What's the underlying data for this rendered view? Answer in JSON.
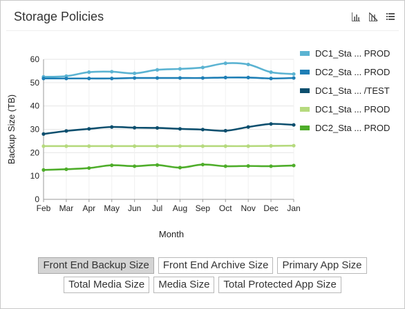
{
  "panel": {
    "title": "Storage Policies",
    "tools": [
      {
        "name": "bar-chart-icon"
      },
      {
        "name": "no-chart-icon"
      },
      {
        "name": "list-icon"
      }
    ]
  },
  "chart_data": {
    "type": "line",
    "xlabel": "Month",
    "ylabel": "Backup Size (TB)",
    "ylim": [
      0,
      60
    ],
    "yticks": [
      0,
      10,
      20,
      30,
      40,
      50,
      60
    ],
    "grid": true,
    "legend_position": "right",
    "categories": [
      "Feb",
      "Mar",
      "Apr",
      "May",
      "Jun",
      "Jul",
      "Aug",
      "Sep",
      "Oct",
      "Nov",
      "Dec",
      "Jan"
    ],
    "series": [
      {
        "name": "DC1_Sta ... PROD",
        "color": "#5bb3d2",
        "values": [
          52.5,
          52.8,
          54.5,
          54.7,
          54.0,
          55.5,
          55.9,
          56.5,
          58.3,
          57.8,
          54.5,
          53.7
        ]
      },
      {
        "name": "DC2_Sta ... PROD",
        "color": "#1f7fb6",
        "values": [
          51.8,
          51.8,
          51.8,
          51.8,
          52.0,
          52.0,
          52.0,
          52.0,
          52.2,
          52.2,
          51.8,
          52.0
        ]
      },
      {
        "name": "DC1_Sta ... /TEST",
        "color": "#0d4f6e",
        "values": [
          28.0,
          29.3,
          30.2,
          31.0,
          30.7,
          30.6,
          30.2,
          29.9,
          29.4,
          31.0,
          32.3,
          31.9
        ]
      },
      {
        "name": "DC1_Sta ... PROD",
        "color": "#b6da7e",
        "values": [
          22.8,
          22.8,
          22.8,
          22.8,
          22.8,
          22.8,
          22.8,
          22.8,
          22.8,
          22.8,
          22.9,
          23.0
        ]
      },
      {
        "name": "DC2_Sta ... PROD",
        "color": "#4ead2a",
        "values": [
          12.6,
          12.9,
          13.4,
          14.6,
          14.2,
          14.7,
          13.6,
          14.9,
          14.2,
          14.3,
          14.2,
          14.5
        ]
      }
    ]
  },
  "tabs": {
    "row1": [
      {
        "label": "Front End Backup Size",
        "active": true
      },
      {
        "label": "Front End Archive Size",
        "active": false
      },
      {
        "label": "Primary App Size",
        "active": false
      }
    ],
    "row2": [
      {
        "label": "Total Media Size",
        "active": false
      },
      {
        "label": "Media Size",
        "active": false
      },
      {
        "label": "Total Protected App Size",
        "active": false
      }
    ]
  }
}
